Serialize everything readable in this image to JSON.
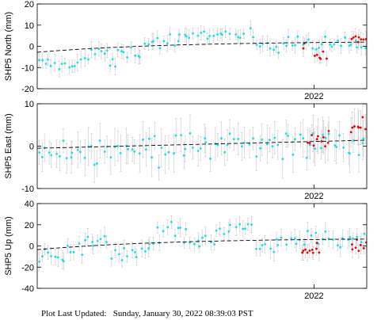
{
  "footer": {
    "label": "Plot Last Updated:",
    "value": "Sunday, January 30, 2022 08:39:03 PST"
  },
  "colors": {
    "point": "#13e0e8",
    "recent": "#e8000b",
    "errorbar": "#c8c8c8",
    "trend": "#000000"
  },
  "chart_data": [
    {
      "type": "scatter",
      "ylabel": "SHP5 North (mm)",
      "ylim": [
        -20,
        20
      ],
      "yticks": [
        -20,
        -10,
        0,
        10,
        20
      ],
      "xtick": {
        "label": "2022",
        "position": 0.84
      },
      "grid": false,
      "trend": {
        "start": -2.8,
        "end": 2.0,
        "shape": "saturating"
      },
      "error": 3.0,
      "segments": [
        {
          "from": 0.0,
          "to": 0.04,
          "mean": -8.0,
          "sd": 2.0
        },
        {
          "from": 0.04,
          "to": 0.12,
          "mean": -9.0,
          "sd": 1.5
        },
        {
          "from": 0.12,
          "to": 0.16,
          "mean": -6.0,
          "sd": 1.5
        },
        {
          "from": 0.16,
          "to": 0.22,
          "mean": -3.0,
          "sd": 2.0
        },
        {
          "from": 0.22,
          "to": 0.24,
          "mean": -8.5,
          "sd": 1.5
        },
        {
          "from": 0.24,
          "to": 0.32,
          "mean": -3.0,
          "sd": 2.0
        },
        {
          "from": 0.32,
          "to": 0.4,
          "mean": 2.0,
          "sd": 2.5
        },
        {
          "from": 0.4,
          "to": 0.48,
          "mean": 3.0,
          "sd": 2.5
        },
        {
          "from": 0.48,
          "to": 0.56,
          "mean": 6.0,
          "sd": 1.5
        },
        {
          "from": 0.56,
          "to": 0.66,
          "mean": 4.5,
          "sd": 2.5
        },
        {
          "from": 0.66,
          "to": 0.74,
          "mean": 1.0,
          "sd": 2.5
        },
        {
          "from": 0.74,
          "to": 0.83,
          "mean": 3.0,
          "sd": 3.0
        },
        {
          "from": 0.83,
          "to": 0.87,
          "mean": -1.0,
          "sd": 2.5
        },
        {
          "from": 0.87,
          "to": 0.92,
          "mean": 1.5,
          "sd": 2.0
        },
        {
          "from": 0.92,
          "to": 1.0,
          "mean": 1.0,
          "sd": 2.5
        }
      ],
      "recent": [
        {
          "from": 0.805,
          "to": 0.815,
          "mean": 0.5,
          "sd": 1.0
        },
        {
          "from": 0.84,
          "to": 0.88,
          "mean": -5.0,
          "sd": 2.5
        },
        {
          "from": 0.95,
          "to": 1.0,
          "mean": 3.5,
          "sd": 2.0
        }
      ]
    },
    {
      "type": "scatter",
      "ylabel": "SHP5 East (mm)",
      "ylim": [
        -10,
        10
      ],
      "yticks": [
        -10,
        0,
        10
      ],
      "xtick": {
        "label": "2022",
        "position": 0.84
      },
      "grid": false,
      "trend": {
        "start": -0.5,
        "end": 1.4,
        "shape": "linear"
      },
      "error": 3.5,
      "segments": [
        {
          "from": 0.0,
          "to": 0.2,
          "mean": -0.5,
          "sd": 2.5
        },
        {
          "from": 0.2,
          "to": 0.5,
          "mean": -0.5,
          "sd": 2.5
        },
        {
          "from": 0.5,
          "to": 0.7,
          "mean": 0.5,
          "sd": 2.5
        },
        {
          "from": 0.7,
          "to": 0.8,
          "mean": 1.0,
          "sd": 2.5
        },
        {
          "from": 0.8,
          "to": 1.0,
          "mean": 0.5,
          "sd": 3.0
        }
      ],
      "recent": [
        {
          "from": 0.82,
          "to": 0.89,
          "mean": 1.0,
          "sd": 2.0
        },
        {
          "from": 0.95,
          "to": 1.0,
          "mean": 5.0,
          "sd": 1.5
        }
      ]
    },
    {
      "type": "scatter",
      "ylabel": "SHP5 Up (mm)",
      "ylim": [
        -40,
        40
      ],
      "yticks": [
        -40,
        -20,
        0,
        20,
        40
      ],
      "xtick": {
        "label": "2022",
        "position": 0.84
      },
      "grid": false,
      "trend": {
        "start": -3.5,
        "end": 6.5,
        "shape": "saturating"
      },
      "error": 7.0,
      "segments": [
        {
          "from": 0.0,
          "to": 0.08,
          "mean": -12.0,
          "sd": 6.0
        },
        {
          "from": 0.08,
          "to": 0.14,
          "mean": -8.0,
          "sd": 6.0
        },
        {
          "from": 0.14,
          "to": 0.22,
          "mean": 5.0,
          "sd": 7.0
        },
        {
          "from": 0.22,
          "to": 0.3,
          "mean": -5.0,
          "sd": 6.0
        },
        {
          "from": 0.3,
          "to": 0.36,
          "mean": 0.0,
          "sd": 6.0
        },
        {
          "from": 0.36,
          "to": 0.44,
          "mean": 15.0,
          "sd": 7.0
        },
        {
          "from": 0.44,
          "to": 0.54,
          "mean": 5.0,
          "sd": 6.0
        },
        {
          "from": 0.54,
          "to": 0.66,
          "mean": 17.0,
          "sd": 4.0
        },
        {
          "from": 0.66,
          "to": 0.74,
          "mean": 0.0,
          "sd": 6.0
        },
        {
          "from": 0.74,
          "to": 0.84,
          "mean": 8.0,
          "sd": 6.0
        },
        {
          "from": 0.84,
          "to": 1.0,
          "mean": 3.0,
          "sd": 7.0
        }
      ],
      "recent": [
        {
          "from": 0.8,
          "to": 0.86,
          "mean": -3.0,
          "sd": 5.0
        },
        {
          "from": 0.95,
          "to": 1.0,
          "mean": 0.0,
          "sd": 6.0
        }
      ]
    }
  ]
}
